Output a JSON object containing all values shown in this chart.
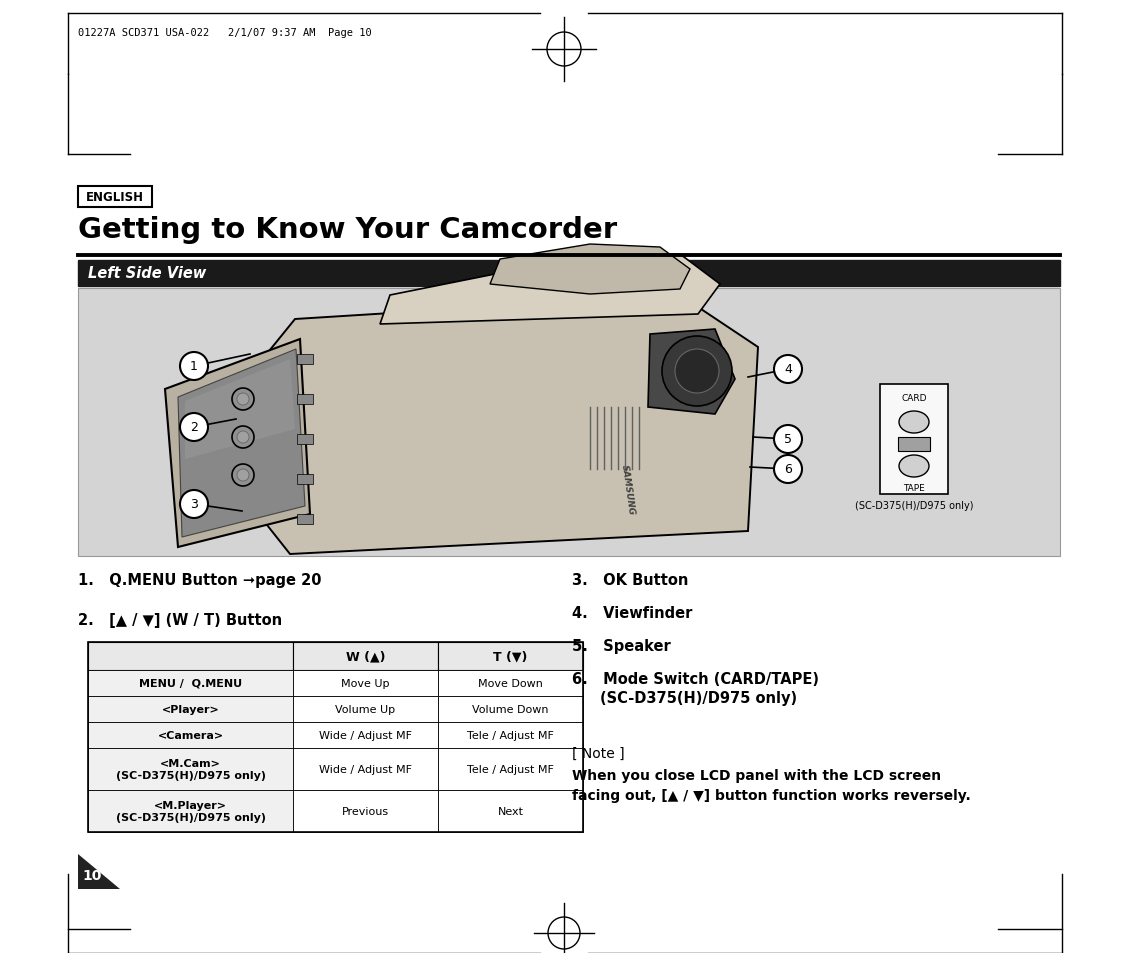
{
  "bg_color": "#ffffff",
  "page_width": 11.28,
  "page_height": 9.54,
  "dpi": 100,
  "header_text": "01227A SCD371 USA-022   2/1/07 9:37 AM  Page 10",
  "english_label": "ENGLISH",
  "title": "Getting to Know Your Camcorder",
  "section_label": "Left Side View",
  "item1": "1.   Q.MENU Button ➞page 20",
  "item2": "2.   [▲ / ▼] (W / T) Button",
  "item3": "3.   OK Button",
  "item4": "4.   Viewfinder",
  "item5": "5.   Speaker",
  "item6a": "6.   Mode Switch (CARD/TAPE)",
  "item6b": "     (SC-D375(H)/D975 only)",
  "note_header": "[ Note ]",
  "note_line1": "When you close LCD panel with the LCD screen",
  "note_line2": "facing out, [▲ / ▼] button function works reversely.",
  "table_headers": [
    "",
    "W (▲)",
    "T (▼)"
  ],
  "table_rows": [
    [
      "MENU /  Q.MENU",
      "Move Up",
      "Move Down"
    ],
    [
      "<Player>",
      "Volume Up",
      "Volume Down"
    ],
    [
      "<Camera>",
      "Wide / Adjust MF",
      "Tele / Adjust MF"
    ],
    [
      "<M.Cam>\n(SC-D375(H)/D975 only)",
      "Wide / Adjust MF",
      "Tele / Adjust MF"
    ],
    [
      "<M.Player>\n(SC-D375(H)/D975 only)",
      "Previous",
      "Next"
    ]
  ],
  "sc_caption": "(SC-D375(H)/D975 only)",
  "page_num": "10",
  "section_bar_color": "#1a1a1a",
  "section_text_color": "#ffffff",
  "diagram_bg": "#d4d4d4",
  "table_header_bg": "#2a2a2a",
  "table_header_color": "#ffffff",
  "table_header_gray": "#e8e8e8",
  "black": "#000000"
}
